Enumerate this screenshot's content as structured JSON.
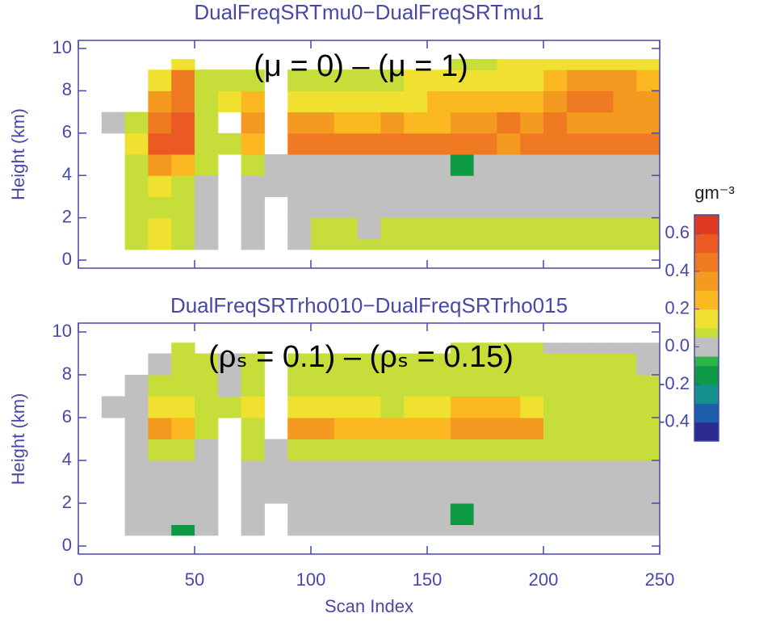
{
  "chart_data": [
    {
      "type": "heatmap",
      "title": "DualFreqSRTmu0−DualFreqSRTmu1",
      "annotation": "(μ = 0) – (μ = 1)",
      "y_label": "Height (km)",
      "xlim": [
        0,
        250
      ],
      "ylim": [
        0,
        10
      ],
      "yticks": [
        0,
        2,
        4,
        6,
        8,
        10
      ],
      "x_edges": [
        0,
        10,
        20,
        30,
        40,
        50,
        60,
        70,
        80,
        90,
        100,
        110,
        120,
        130,
        140,
        150,
        160,
        170,
        180,
        190,
        200,
        210,
        220,
        230,
        240,
        250
      ],
      "y_edges": [
        0.5,
        1,
        2,
        3,
        4,
        5,
        6,
        7,
        8,
        9,
        9.5
      ],
      "z": [
        [
          null,
          null,
          0.07,
          0.15,
          0.07,
          0,
          null,
          0,
          null,
          0,
          0.07,
          0.07,
          0.07,
          0.07,
          0.07,
          0.07,
          0.07,
          0.07,
          0.07,
          0.07,
          0.07,
          0.07,
          0.07,
          0.07,
          0.07
        ],
        [
          null,
          null,
          0.07,
          0.15,
          0.07,
          0,
          null,
          0,
          null,
          0,
          0.07,
          0.07,
          0,
          0.07,
          0.07,
          0.07,
          0.07,
          0.07,
          0.07,
          0.07,
          0.07,
          0.07,
          0.07,
          0.07,
          0.07
        ],
        [
          null,
          null,
          0.07,
          0.07,
          0.07,
          0,
          null,
          0,
          null,
          0,
          0,
          0,
          0,
          0,
          0,
          0,
          0,
          0,
          0,
          0,
          0,
          0,
          0,
          0,
          0
        ],
        [
          null,
          null,
          0.07,
          0.15,
          0.07,
          0,
          null,
          0,
          0,
          0,
          0,
          0,
          0,
          0,
          0,
          0,
          0,
          0,
          0,
          0,
          0,
          0,
          0,
          0,
          0
        ],
        [
          null,
          null,
          0.07,
          0.35,
          0.25,
          0.07,
          null,
          0.07,
          0,
          0,
          0,
          0,
          0,
          0,
          0,
          0,
          -0.15,
          0,
          0,
          0,
          0,
          0,
          0,
          0,
          0
        ],
        [
          null,
          null,
          0.15,
          0.55,
          0.55,
          0.07,
          0.07,
          0.25,
          null,
          0.45,
          0.45,
          0.45,
          0.45,
          0.45,
          0.45,
          0.45,
          0.45,
          0.45,
          0.35,
          0.45,
          0.45,
          0.45,
          0.45,
          0.45,
          0.45
        ],
        [
          null,
          0,
          0.07,
          0.45,
          0.55,
          0.07,
          null,
          0.35,
          null,
          0.35,
          0.35,
          0.25,
          0.25,
          0.35,
          0.25,
          0.25,
          0.35,
          0.35,
          0.45,
          0.35,
          0.45,
          0.35,
          0.35,
          0.35,
          0.35
        ],
        [
          null,
          null,
          null,
          0.35,
          0.45,
          0.07,
          0.15,
          0.25,
          null,
          0.15,
          0.15,
          0.15,
          0.15,
          0.15,
          0.15,
          0.25,
          0.25,
          0.25,
          0.25,
          0.25,
          0.35,
          0.45,
          0.45,
          0.35,
          0.35
        ],
        [
          null,
          null,
          null,
          0.15,
          0.45,
          0.07,
          0.07,
          0.07,
          null,
          0.07,
          0.07,
          0.07,
          0.07,
          0.07,
          0.15,
          0.15,
          0.15,
          0.15,
          0.15,
          0.15,
          0.25,
          0.35,
          0.35,
          0.35,
          0.25
        ],
        [
          null,
          null,
          null,
          null,
          0.15,
          null,
          null,
          null,
          null,
          null,
          null,
          null,
          null,
          null,
          null,
          null,
          0.07,
          0.07,
          0.15,
          0.15,
          0.15,
          0.15,
          0.15,
          0.15,
          0.15
        ]
      ]
    },
    {
      "type": "heatmap",
      "title": "DualFreqSRTrho010−DualFreqSRTrho015",
      "annotation": "(ρₛ = 0.1) – (ρₛ = 0.15)",
      "y_label": "Height (km)",
      "x_label": "Scan Index",
      "xlim": [
        0,
        250
      ],
      "ylim": [
        0,
        10
      ],
      "xticks": [
        0,
        50,
        100,
        150,
        200,
        250
      ],
      "yticks": [
        0,
        2,
        4,
        6,
        8,
        10
      ],
      "x_edges": [
        0,
        10,
        20,
        30,
        40,
        50,
        60,
        70,
        80,
        90,
        100,
        110,
        120,
        130,
        140,
        150,
        160,
        170,
        180,
        190,
        200,
        210,
        220,
        230,
        240,
        250
      ],
      "y_edges": [
        0.5,
        1,
        2,
        3,
        4,
        5,
        6,
        7,
        8,
        9,
        9.5
      ],
      "z": [
        [
          null,
          null,
          0,
          0,
          -0.15,
          0,
          null,
          0,
          null,
          0,
          0,
          0,
          0,
          0,
          0,
          0,
          0,
          0,
          0,
          0,
          0,
          0,
          0,
          0,
          0
        ],
        [
          null,
          null,
          0,
          0,
          0,
          0,
          null,
          0,
          null,
          0,
          0,
          0,
          0,
          0,
          0,
          0,
          -0.15,
          0,
          0,
          0,
          0,
          0,
          0,
          0,
          0
        ],
        [
          null,
          null,
          0,
          0,
          0,
          0,
          null,
          0,
          0,
          0,
          0,
          0,
          0,
          0,
          0,
          0,
          0,
          0,
          0,
          0,
          0,
          0,
          0,
          0,
          0
        ],
        [
          null,
          null,
          0,
          0,
          0,
          0,
          null,
          0,
          0,
          0,
          0,
          0,
          0,
          0,
          0,
          0,
          0,
          0,
          0,
          0,
          0,
          0,
          0,
          0,
          0
        ],
        [
          null,
          null,
          0,
          0.07,
          0.07,
          0,
          null,
          0.07,
          0,
          0.07,
          0.07,
          0.07,
          0.07,
          0.07,
          0.07,
          0.07,
          0.07,
          0.07,
          0.07,
          0.07,
          0.07,
          0.07,
          0.07,
          0.07,
          0.07
        ],
        [
          null,
          null,
          0,
          0.35,
          0.25,
          0.07,
          null,
          0.07,
          null,
          0.35,
          0.35,
          0.25,
          0.25,
          0.25,
          0.25,
          0.25,
          0.35,
          0.35,
          0.35,
          0.35,
          0.07,
          0.07,
          0.07,
          0.07,
          0.07
        ],
        [
          null,
          0,
          0,
          0.15,
          0.15,
          0.07,
          0.07,
          0.15,
          null,
          0.15,
          0.15,
          0.15,
          0.15,
          0.07,
          0.15,
          0.15,
          0.25,
          0.25,
          0.25,
          0.15,
          0.07,
          0.07,
          0.07,
          0.07,
          0.07
        ],
        [
          null,
          null,
          0,
          0.07,
          0.07,
          0.07,
          0,
          0.07,
          null,
          0.07,
          0.07,
          0.07,
          0.07,
          0.07,
          0.07,
          0.07,
          0.07,
          0.07,
          0.07,
          0.07,
          0.07,
          0.07,
          0.07,
          0.07,
          0.07
        ],
        [
          null,
          null,
          null,
          0,
          0.07,
          0.07,
          0,
          0.07,
          null,
          0.07,
          0.07,
          0.07,
          0.07,
          0.07,
          0.07,
          0.07,
          0.07,
          0.07,
          0.07,
          0.07,
          0.07,
          0.07,
          0.07,
          0.07,
          0
        ],
        [
          null,
          null,
          null,
          null,
          0.07,
          null,
          null,
          null,
          null,
          null,
          null,
          null,
          null,
          null,
          null,
          null,
          0.07,
          0.07,
          0.07,
          0.07,
          0,
          0,
          0,
          0,
          0
        ]
      ]
    }
  ],
  "colorbar": {
    "label": "gm⁻³",
    "lim": [
      -0.5,
      0.7
    ],
    "bounds": [
      -0.5,
      -0.4,
      -0.3,
      -0.2,
      -0.1,
      -0.05,
      0.05,
      0.1,
      0.2,
      0.3,
      0.4,
      0.5,
      0.6,
      0.7
    ],
    "colors": [
      "#2a2a90",
      "#1c5fa8",
      "#14908f",
      "#0e9a45",
      "#2cb34a",
      "#c0c0c0",
      "#c6dd3a",
      "#f0e030",
      "#fbb820",
      "#f59a20",
      "#f07a22",
      "#ea5a22",
      "#e03a20"
    ],
    "ticks": [
      -0.4,
      -0.2,
      {
        "value": 0,
        "label": "0.0"
      },
      0.2,
      0.4,
      0.6
    ]
  }
}
